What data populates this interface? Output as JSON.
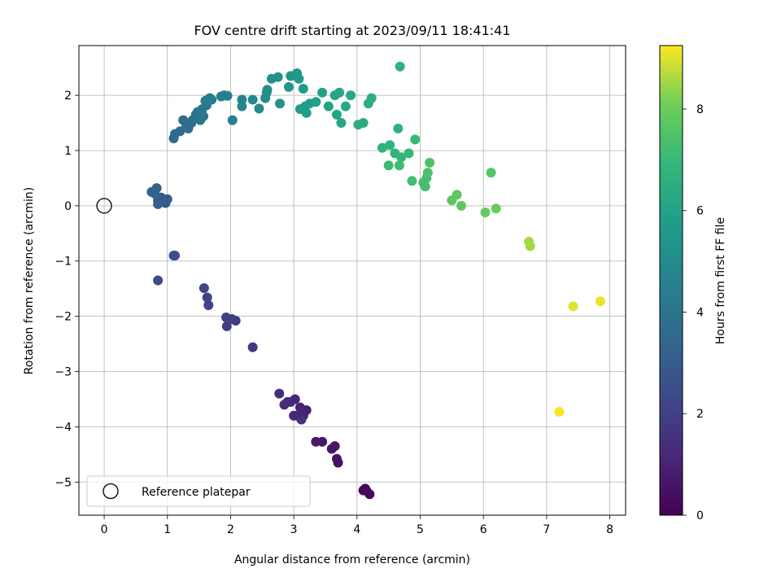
{
  "chart_data": {
    "type": "scatter",
    "title": "FOV centre drift starting at 2023/09/11 18:41:41",
    "xlabel": "Angular distance from reference (arcmin)",
    "ylabel": "Rotation from reference (arcmin)",
    "xlim": [
      -0.4,
      8.25
    ],
    "ylim": [
      -5.6,
      2.9
    ],
    "x_ticks": [
      0,
      1,
      2,
      3,
      4,
      5,
      6,
      7,
      8
    ],
    "y_ticks": [
      -5,
      -4,
      -3,
      -2,
      -1,
      0,
      1,
      2
    ],
    "x_tick_labels": [
      "0",
      "1",
      "2",
      "3",
      "4",
      "5",
      "6",
      "7",
      "8"
    ],
    "y_tick_labels": [
      "−5",
      "−4",
      "−3",
      "−2",
      "−1",
      "0",
      "1",
      "2"
    ],
    "grid": true,
    "colormap": "viridis",
    "colorbar": {
      "label": "Hours from first FF file",
      "range": [
        0,
        9.25
      ],
      "ticks": [
        0,
        2,
        4,
        6,
        8
      ],
      "tick_labels": [
        "0",
        "2",
        "4",
        "6",
        "8"
      ]
    },
    "reference_point": {
      "x": 0,
      "y": 0
    },
    "legend": {
      "label": "Reference platepar",
      "placement": "lower-left"
    },
    "points": [
      [
        4.1,
        -5.15,
        0.1
      ],
      [
        4.15,
        -5.16,
        0.15
      ],
      [
        4.2,
        -5.22,
        0.2
      ],
      [
        4.13,
        -5.12,
        0.25
      ],
      [
        3.7,
        -4.65,
        0.5
      ],
      [
        3.68,
        -4.58,
        0.55
      ],
      [
        3.65,
        -4.35,
        0.6
      ],
      [
        3.6,
        -4.4,
        0.65
      ],
      [
        3.45,
        -4.27,
        0.7
      ],
      [
        3.35,
        -4.27,
        0.75
      ],
      [
        3.2,
        -3.7,
        0.9
      ],
      [
        3.15,
        -3.8,
        0.95
      ],
      [
        3.1,
        -3.65,
        1.0
      ],
      [
        3.05,
        -3.8,
        1.05
      ],
      [
        3.02,
        -3.5,
        1.1
      ],
      [
        3.0,
        -3.8,
        1.15
      ],
      [
        2.95,
        -3.55,
        1.2
      ],
      [
        2.9,
        -3.55,
        1.25
      ],
      [
        2.85,
        -3.6,
        1.3
      ],
      [
        2.77,
        -3.4,
        1.35
      ],
      [
        3.12,
        -3.87,
        1.4
      ],
      [
        2.35,
        -2.56,
        1.7
      ],
      [
        2.08,
        -2.08,
        1.8
      ],
      [
        2.02,
        -2.05,
        1.85
      ],
      [
        1.94,
        -2.18,
        1.9
      ],
      [
        1.93,
        -2.02,
        1.95
      ],
      [
        1.65,
        -1.8,
        2.1
      ],
      [
        1.63,
        -1.66,
        2.15
      ],
      [
        1.58,
        -1.49,
        2.2
      ],
      [
        0.85,
        -1.35,
        2.3
      ],
      [
        1.12,
        -0.9,
        2.5
      ],
      [
        1.1,
        -0.9,
        2.55
      ],
      [
        1.0,
        0.12,
        2.9
      ],
      [
        0.97,
        0.05,
        2.95
      ],
      [
        0.93,
        0.1,
        3.0
      ],
      [
        0.9,
        0.15,
        3.05
      ],
      [
        0.85,
        0.1,
        3.1
      ],
      [
        0.85,
        0.03,
        3.15
      ],
      [
        0.8,
        0.22,
        3.2
      ],
      [
        0.75,
        0.25,
        3.25
      ],
      [
        0.83,
        0.32,
        3.3
      ],
      [
        1.1,
        1.22,
        3.5
      ],
      [
        1.12,
        1.3,
        3.55
      ],
      [
        1.2,
        1.35,
        3.6
      ],
      [
        1.25,
        1.55,
        3.65
      ],
      [
        1.3,
        1.45,
        3.7
      ],
      [
        1.33,
        1.4,
        3.75
      ],
      [
        1.38,
        1.5,
        3.8
      ],
      [
        1.4,
        1.55,
        3.85
      ],
      [
        1.45,
        1.65,
        3.9
      ],
      [
        1.48,
        1.7,
        3.95
      ],
      [
        1.5,
        1.6,
        4.0
      ],
      [
        1.52,
        1.55,
        4.05
      ],
      [
        1.55,
        1.75,
        4.1
      ],
      [
        1.57,
        1.62,
        4.15
      ],
      [
        1.6,
        1.9,
        4.2
      ],
      [
        1.62,
        1.82,
        4.25
      ],
      [
        1.67,
        1.95,
        4.3
      ],
      [
        1.7,
        1.92,
        4.35
      ],
      [
        1.85,
        1.98,
        4.45
      ],
      [
        1.9,
        2.0,
        4.5
      ],
      [
        1.95,
        1.99,
        4.55
      ],
      [
        2.03,
        1.55,
        4.6
      ],
      [
        2.18,
        1.92,
        4.75
      ],
      [
        2.18,
        1.8,
        4.8
      ],
      [
        2.35,
        1.92,
        4.9
      ],
      [
        2.45,
        1.76,
        5.0
      ],
      [
        2.55,
        1.95,
        5.05
      ],
      [
        2.57,
        2.05,
        5.1
      ],
      [
        2.58,
        2.1,
        5.15
      ],
      [
        2.65,
        2.3,
        5.2
      ],
      [
        2.75,
        2.33,
        5.3
      ],
      [
        2.78,
        1.85,
        5.35
      ],
      [
        2.92,
        2.15,
        5.45
      ],
      [
        2.95,
        2.35,
        5.5
      ],
      [
        3.05,
        2.4,
        5.55
      ],
      [
        3.08,
        2.3,
        5.6
      ],
      [
        3.1,
        1.75,
        5.65
      ],
      [
        3.15,
        2.12,
        5.7
      ],
      [
        3.18,
        1.8,
        5.75
      ],
      [
        3.2,
        1.68,
        5.8
      ],
      [
        3.25,
        1.85,
        5.85
      ],
      [
        3.35,
        1.88,
        5.9
      ],
      [
        3.45,
        2.05,
        5.95
      ],
      [
        3.55,
        1.8,
        6.0
      ],
      [
        3.65,
        2.0,
        6.05
      ],
      [
        3.68,
        1.65,
        6.1
      ],
      [
        3.72,
        2.05,
        6.15
      ],
      [
        3.75,
        1.5,
        6.2
      ],
      [
        3.82,
        1.8,
        6.25
      ],
      [
        3.9,
        2.0,
        6.3
      ],
      [
        4.1,
        1.5,
        6.4
      ],
      [
        4.02,
        1.47,
        6.45
      ],
      [
        4.18,
        1.85,
        6.5
      ],
      [
        4.23,
        1.95,
        6.55
      ],
      [
        4.65,
        1.4,
        6.6
      ],
      [
        4.68,
        2.52,
        6.65
      ],
      [
        4.4,
        1.05,
        6.75
      ],
      [
        4.52,
        1.1,
        6.8
      ],
      [
        4.6,
        0.95,
        6.85
      ],
      [
        4.7,
        0.88,
        6.9
      ],
      [
        4.82,
        0.95,
        6.95
      ],
      [
        4.92,
        1.2,
        7.0
      ],
      [
        4.5,
        0.73,
        7.05
      ],
      [
        4.67,
        0.73,
        7.1
      ],
      [
        4.87,
        0.45,
        7.2
      ],
      [
        5.05,
        0.42,
        7.25
      ],
      [
        5.08,
        0.35,
        7.3
      ],
      [
        5.1,
        0.5,
        7.35
      ],
      [
        5.12,
        0.6,
        7.4
      ],
      [
        5.15,
        0.78,
        7.45
      ],
      [
        5.5,
        0.1,
        7.7
      ],
      [
        5.58,
        0.2,
        7.75
      ],
      [
        5.65,
        0.0,
        7.8
      ],
      [
        6.12,
        0.6,
        7.6
      ],
      [
        6.03,
        -0.12,
        7.95
      ],
      [
        6.2,
        -0.05,
        8.0
      ],
      [
        6.72,
        -0.65,
        8.5
      ],
      [
        6.74,
        -0.73,
        8.55
      ],
      [
        7.42,
        -1.82,
        9.0
      ],
      [
        7.85,
        -1.73,
        9.1
      ],
      [
        7.2,
        -3.73,
        9.2
      ]
    ]
  }
}
